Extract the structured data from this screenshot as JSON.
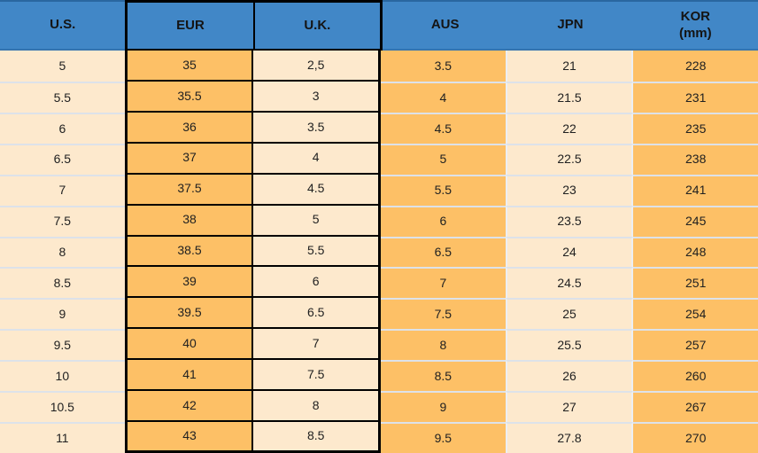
{
  "colors": {
    "header_bg": "#4187c7",
    "header_top_line": "#2a67a0",
    "header_bottom_line": "#3474af",
    "orange": "#fdc066",
    "cream": "#fde9cd",
    "grid_black": "#000000",
    "row_separator": "#dde2e9",
    "col_separator": "#eceff3"
  },
  "table": {
    "columns": [
      {
        "key": "us",
        "label": "U.S.",
        "highlighted": false
      },
      {
        "key": "eur",
        "label": "EUR",
        "highlighted": true
      },
      {
        "key": "uk",
        "label": "U.K.",
        "highlighted": true
      },
      {
        "key": "aus",
        "label": "AUS",
        "highlighted": false
      },
      {
        "key": "jpn",
        "label": "JPN",
        "highlighted": false
      },
      {
        "key": "kor",
        "label": "KOR",
        "sublabel": "(mm)",
        "highlighted": false
      }
    ],
    "rows": [
      [
        "5",
        "35",
        "2,5",
        "3.5",
        "21",
        "228"
      ],
      [
        "5.5",
        "35.5",
        "3",
        "4",
        "21.5",
        "231"
      ],
      [
        "6",
        "36",
        "3.5",
        "4.5",
        "22",
        "235"
      ],
      [
        "6.5",
        "37",
        "4",
        "5",
        "22.5",
        "238"
      ],
      [
        "7",
        "37.5",
        "4.5",
        "5.5",
        "23",
        "241"
      ],
      [
        "7.5",
        "38",
        "5",
        "6",
        "23.5",
        "245"
      ],
      [
        "8",
        "38.5",
        "5.5",
        "6.5",
        "24",
        "248"
      ],
      [
        "8.5",
        "39",
        "6",
        "7",
        "24.5",
        "251"
      ],
      [
        "9",
        "39.5",
        "6.5",
        "7.5",
        "25",
        "254"
      ],
      [
        "9.5",
        "40",
        "7",
        "8",
        "25.5",
        "257"
      ],
      [
        "10",
        "41",
        "7.5",
        "8.5",
        "26",
        "260"
      ],
      [
        "10.5",
        "42",
        "8",
        "9",
        "27",
        "267"
      ],
      [
        "11",
        "43",
        "8.5",
        "9.5",
        "27.8",
        "270"
      ]
    ]
  }
}
